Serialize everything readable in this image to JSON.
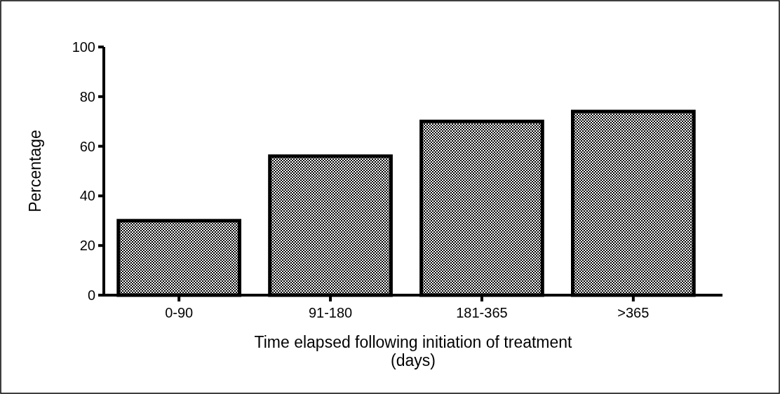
{
  "chart_data": {
    "type": "bar",
    "xlabel": "Time elapsed following initiation of treatment\n(days)",
    "ylabel": "Percentage",
    "categories": [
      "0-90",
      "91-180",
      "181-365",
      ">365"
    ],
    "values": [
      30,
      56,
      70,
      74
    ],
    "color": "#000000",
    "ylim": [
      0,
      100
    ],
    "yticks": [
      0,
      20,
      40,
      60,
      80,
      100
    ],
    "grid": false
  }
}
